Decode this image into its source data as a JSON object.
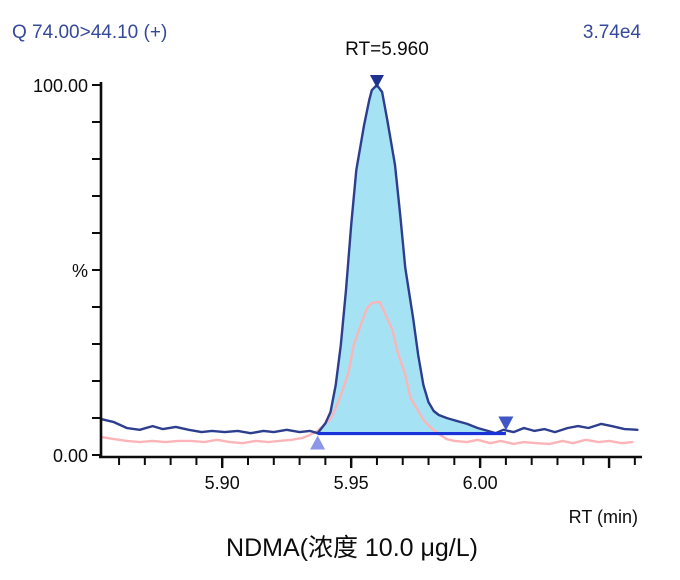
{
  "header": {
    "transition_label": "Q 74.00>44.10 (+)",
    "intensity_label": "3.74e4",
    "peak_annotation": "RT=5.960"
  },
  "title": "NDMA(浓度 10.0 μg/L)",
  "axes": {
    "x_label": "RT (min)",
    "y_unit": "%",
    "y_max_label": "100.00",
    "y_min_label": "0.00"
  },
  "colors": {
    "header_text": "#35499b",
    "quantifier_trace": "#2d3e8f",
    "peak_fill": "#a5e3f4",
    "qualifier_trace": "#fbb5b9",
    "integration_baseline": "#1733d9",
    "peak_start_marker": "#8d97e8",
    "peak_end_marker": "#4156c6",
    "apex_marker": "#203290",
    "axis": "#0c0c0c"
  },
  "chart_data": {
    "type": "area",
    "title": "NDMA(浓度 10.0 μg/L)",
    "xlabel": "RT (min)",
    "ylabel": "%",
    "x_axis": {
      "min": 5.853,
      "max": 6.062,
      "minor_tick_start": 5.86,
      "minor_tick_step": 0.01,
      "minor_tick_count": 21,
      "major_ticks": [
        {
          "value": 5.9,
          "label": "5.90"
        },
        {
          "value": 5.95,
          "label": "5.95"
        },
        {
          "value": 6.0,
          "label": "6.00"
        },
        {
          "value": 6.05,
          "label": ""
        }
      ]
    },
    "y_axis": {
      "min": 0,
      "max": 100,
      "tick_step": 10,
      "max_label": "100.00",
      "min_label": "0.00",
      "unit": "%"
    },
    "peak": {
      "rt": 5.96,
      "height_pct": 100,
      "intensity": "3.74e4",
      "transition": "Q 74.00>44.10 (+)",
      "baseline_start_rt": 5.937,
      "baseline_end_rt": 6.01,
      "baseline_level_pct": 5.8,
      "fill_start_rt": 5.937,
      "fill_end_rt": 6.006
    },
    "series": [
      {
        "name": "quantifier-74.00-44.10",
        "color": "#2d3e8f",
        "points": [
          [
            5.853,
            9.7
          ],
          [
            5.858,
            8.9
          ],
          [
            5.863,
            7.3
          ],
          [
            5.868,
            6.8
          ],
          [
            5.873,
            7.8
          ],
          [
            5.877,
            7.0
          ],
          [
            5.882,
            7.6
          ],
          [
            5.887,
            6.8
          ],
          [
            5.892,
            6.2
          ],
          [
            5.896,
            6.5
          ],
          [
            5.901,
            6.2
          ],
          [
            5.906,
            6.5
          ],
          [
            5.911,
            5.9
          ],
          [
            5.916,
            6.5
          ],
          [
            5.92,
            6.2
          ],
          [
            5.925,
            6.8
          ],
          [
            5.93,
            6.2
          ],
          [
            5.934,
            6.5
          ],
          [
            5.937,
            5.9
          ],
          [
            5.94,
            8.6
          ],
          [
            5.942,
            11.6
          ],
          [
            5.944,
            18.9
          ],
          [
            5.946,
            29.7
          ],
          [
            5.948,
            44.6
          ],
          [
            5.95,
            62.2
          ],
          [
            5.952,
            77.0
          ],
          [
            5.955,
            89.2
          ],
          [
            5.957,
            95.9
          ],
          [
            5.958,
            98.6
          ],
          [
            5.96,
            100.0
          ],
          [
            5.962,
            98.1
          ],
          [
            5.964,
            90.5
          ],
          [
            5.967,
            78.4
          ],
          [
            5.969,
            64.9
          ],
          [
            5.971,
            50.5
          ],
          [
            5.974,
            37.0
          ],
          [
            5.976,
            27.0
          ],
          [
            5.978,
            18.9
          ],
          [
            5.98,
            14.3
          ],
          [
            5.982,
            11.9
          ],
          [
            5.984,
            10.8
          ],
          [
            5.987,
            10.0
          ],
          [
            5.991,
            9.2
          ],
          [
            5.995,
            8.4
          ],
          [
            5.999,
            7.3
          ],
          [
            6.003,
            6.5
          ],
          [
            6.006,
            5.9
          ],
          [
            6.009,
            6.8
          ],
          [
            6.013,
            6.2
          ],
          [
            6.017,
            7.3
          ],
          [
            6.021,
            6.5
          ],
          [
            6.025,
            7.0
          ],
          [
            6.029,
            6.2
          ],
          [
            6.034,
            7.3
          ],
          [
            6.038,
            7.8
          ],
          [
            6.042,
            7.3
          ],
          [
            6.047,
            8.4
          ],
          [
            6.051,
            7.8
          ],
          [
            6.056,
            7.0
          ],
          [
            6.061,
            6.8
          ]
        ]
      },
      {
        "name": "qualifier",
        "color": "#fbb5b9",
        "points": [
          [
            5.853,
            4.9
          ],
          [
            5.858,
            4.3
          ],
          [
            5.863,
            3.8
          ],
          [
            5.868,
            3.5
          ],
          [
            5.873,
            3.8
          ],
          [
            5.878,
            3.5
          ],
          [
            5.883,
            3.8
          ],
          [
            5.888,
            3.8
          ],
          [
            5.893,
            3.5
          ],
          [
            5.898,
            4.1
          ],
          [
            5.903,
            3.5
          ],
          [
            5.908,
            3.2
          ],
          [
            5.913,
            3.8
          ],
          [
            5.918,
            3.5
          ],
          [
            5.922,
            3.8
          ],
          [
            5.927,
            4.1
          ],
          [
            5.931,
            4.6
          ],
          [
            5.934,
            5.4
          ],
          [
            5.937,
            6.5
          ],
          [
            5.939,
            7.8
          ],
          [
            5.942,
            9.7
          ],
          [
            5.944,
            12.7
          ],
          [
            5.946,
            16.2
          ],
          [
            5.949,
            22.4
          ],
          [
            5.951,
            29.7
          ],
          [
            5.954,
            35.7
          ],
          [
            5.956,
            39.5
          ],
          [
            5.958,
            41.1
          ],
          [
            5.961,
            41.4
          ],
          [
            5.963,
            38.4
          ],
          [
            5.966,
            33.8
          ],
          [
            5.968,
            27.8
          ],
          [
            5.971,
            21.6
          ],
          [
            5.973,
            15.4
          ],
          [
            5.976,
            11.9
          ],
          [
            5.978,
            9.5
          ],
          [
            5.981,
            7.3
          ],
          [
            5.984,
            5.7
          ],
          [
            5.987,
            4.3
          ],
          [
            5.99,
            3.8
          ],
          [
            5.995,
            3.5
          ],
          [
            5.999,
            4.1
          ],
          [
            6.004,
            3.2
          ],
          [
            6.008,
            3.8
          ],
          [
            6.013,
            3.0
          ],
          [
            6.017,
            3.5
          ],
          [
            6.022,
            3.2
          ],
          [
            6.027,
            3.0
          ],
          [
            6.032,
            3.8
          ],
          [
            6.036,
            3.2
          ],
          [
            6.041,
            4.1
          ],
          [
            6.046,
            3.5
          ],
          [
            6.05,
            3.8
          ],
          [
            6.055,
            3.2
          ],
          [
            6.059,
            3.5
          ]
        ]
      }
    ]
  }
}
